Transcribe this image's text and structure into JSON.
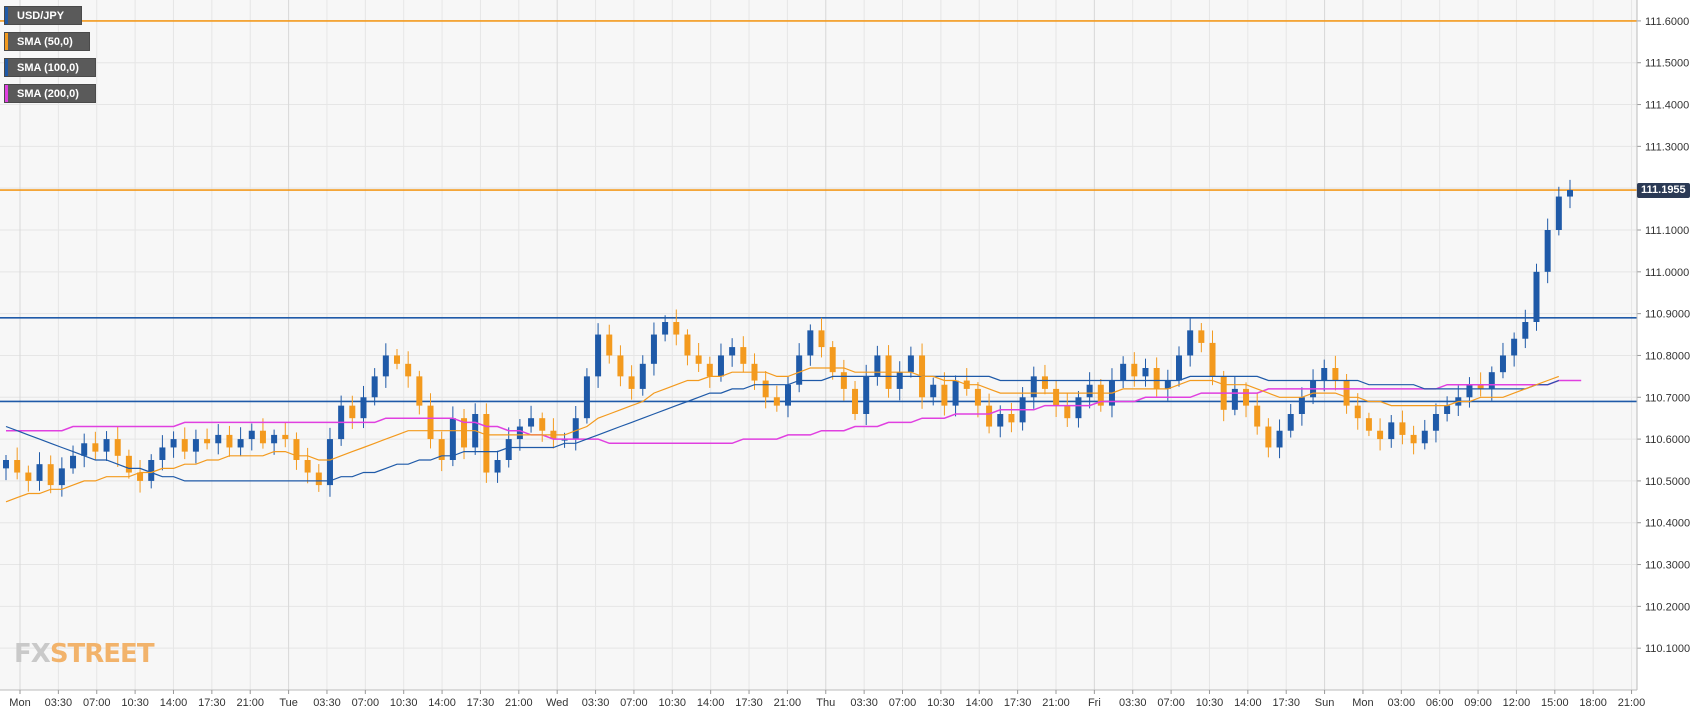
{
  "legend": [
    {
      "label": "USD/JPY",
      "color": "#1f5aa8"
    },
    {
      "label": "SMA (50,0)",
      "color": "#f39a1e"
    },
    {
      "label": "SMA (100,0)",
      "color": "#1f5aa8"
    },
    {
      "label": "SMA (200,0)",
      "color": "#e040e0"
    }
  ],
  "logo": {
    "left": "FX",
    "right": "STREET"
  },
  "price_tag": "111.1955",
  "colors": {
    "bull": "#1f5aa8",
    "bear": "#f39a1e",
    "sma50": "#f39a1e",
    "sma100": "#1f5aa8",
    "sma200": "#e040e0",
    "resistance": "#f39a1e",
    "support": "#1f5aa8",
    "grid": "#e6e6e6"
  },
  "chart_data": {
    "type": "candlestick",
    "symbol": "USD/JPY",
    "ylim": [
      110.0,
      111.65
    ],
    "y_ticks": [
      "111.6000",
      "111.5000",
      "111.4000",
      "111.3000",
      "111.2000",
      "111.1000",
      "111.0000",
      "110.9000",
      "110.8000",
      "110.7000",
      "110.6000",
      "110.5000",
      "110.4000",
      "110.3000",
      "110.2000",
      "110.1000"
    ],
    "x_ticks": [
      "Mon",
      "03:30",
      "07:00",
      "10:30",
      "14:00",
      "17:30",
      "21:00",
      "Tue",
      "03:30",
      "07:00",
      "10:30",
      "14:00",
      "17:30",
      "21:00",
      "Wed",
      "03:30",
      "07:00",
      "10:30",
      "14:00",
      "17:30",
      "21:00",
      "Thu",
      "03:30",
      "07:00",
      "10:30",
      "14:00",
      "17:30",
      "21:00",
      "Fri",
      "03:30",
      "07:00",
      "10:30",
      "14:00",
      "17:30",
      "Sun",
      "Mon",
      "03:00",
      "06:00",
      "09:00",
      "12:00",
      "15:00",
      "18:00",
      "21:00"
    ],
    "horizontal_lines": [
      {
        "value": 111.6,
        "kind": "resistance"
      },
      {
        "value": 111.1955,
        "kind": "resistance"
      },
      {
        "value": 110.89,
        "kind": "support"
      },
      {
        "value": 110.69,
        "kind": "support"
      }
    ],
    "closes": [
      110.55,
      110.52,
      110.5,
      110.54,
      110.49,
      110.53,
      110.56,
      110.59,
      110.57,
      110.6,
      110.56,
      110.52,
      110.5,
      110.55,
      110.58,
      110.6,
      110.57,
      110.6,
      110.59,
      110.61,
      110.58,
      110.6,
      110.62,
      110.59,
      110.61,
      110.6,
      110.55,
      110.52,
      110.49,
      110.6,
      110.68,
      110.65,
      110.7,
      110.75,
      110.8,
      110.78,
      110.75,
      110.68,
      110.6,
      110.55,
      110.65,
      110.58,
      110.66,
      110.52,
      110.55,
      110.6,
      110.63,
      110.65,
      110.62,
      110.6,
      110.6,
      110.65,
      110.75,
      110.85,
      110.8,
      110.75,
      110.72,
      110.78,
      110.85,
      110.88,
      110.85,
      110.8,
      110.78,
      110.75,
      110.8,
      110.82,
      110.78,
      110.74,
      110.7,
      110.68,
      110.73,
      110.8,
      110.86,
      110.82,
      110.76,
      110.72,
      110.66,
      110.75,
      110.8,
      110.72,
      110.76,
      110.8,
      110.7,
      110.73,
      110.68,
      110.74,
      110.72,
      110.68,
      110.63,
      110.66,
      110.64,
      110.7,
      110.75,
      110.72,
      110.68,
      110.65,
      110.7,
      110.73,
      110.68,
      110.74,
      110.78,
      110.75,
      110.77,
      110.72,
      110.74,
      110.8,
      110.86,
      110.83,
      110.75,
      110.67,
      110.72,
      110.68,
      110.63,
      110.58,
      110.62,
      110.66,
      110.7,
      110.74,
      110.77,
      110.74,
      110.68,
      110.65,
      110.62,
      110.6,
      110.64,
      110.61,
      110.59,
      110.62,
      110.66,
      110.68,
      110.7,
      110.73,
      110.72,
      110.76,
      110.8,
      110.84,
      110.88,
      111.0,
      111.1,
      111.18,
      111.1955
    ],
    "sma50": [
      110.45,
      110.46,
      110.47,
      110.47,
      110.48,
      110.48,
      110.49,
      110.5,
      110.5,
      110.51,
      110.51,
      110.51,
      110.52,
      110.52,
      110.53,
      110.53,
      110.54,
      110.54,
      110.55,
      110.55,
      110.56,
      110.56,
      110.56,
      110.56,
      110.57,
      110.57,
      110.56,
      110.56,
      110.55,
      110.55,
      110.56,
      110.57,
      110.58,
      110.59,
      110.6,
      110.61,
      110.62,
      110.62,
      110.62,
      110.62,
      110.62,
      110.62,
      110.62,
      110.61,
      110.61,
      110.61,
      110.61,
      110.61,
      110.61,
      110.61,
      110.61,
      110.62,
      110.63,
      110.65,
      110.66,
      110.67,
      110.68,
      110.69,
      110.71,
      110.72,
      110.73,
      110.74,
      110.74,
      110.75,
      110.75,
      110.76,
      110.76,
      110.76,
      110.76,
      110.75,
      110.75,
      110.76,
      110.77,
      110.77,
      110.77,
      110.77,
      110.76,
      110.76,
      110.76,
      110.76,
      110.76,
      110.76,
      110.75,
      110.75,
      110.74,
      110.74,
      110.73,
      110.73,
      110.72,
      110.71,
      110.71,
      110.71,
      110.71,
      110.71,
      110.71,
      110.71,
      110.71,
      110.71,
      110.71,
      110.71,
      110.72,
      110.72,
      110.72,
      110.72,
      110.72,
      110.73,
      110.74,
      110.74,
      110.74,
      110.73,
      110.73,
      110.73,
      110.72,
      110.71,
      110.7,
      110.7,
      110.7,
      110.71,
      110.71,
      110.71,
      110.7,
      110.7,
      110.69,
      110.69,
      110.68,
      110.68,
      110.68,
      110.68,
      110.68,
      110.68,
      110.69,
      110.69,
      110.7,
      110.7,
      110.7,
      110.71,
      110.72,
      110.73,
      110.74,
      110.75
    ],
    "sma100": [
      110.63,
      110.62,
      110.61,
      110.6,
      110.59,
      110.58,
      110.57,
      110.56,
      110.55,
      110.55,
      110.54,
      110.53,
      110.53,
      110.52,
      110.51,
      110.51,
      110.5,
      110.5,
      110.5,
      110.5,
      110.5,
      110.5,
      110.5,
      110.5,
      110.5,
      110.5,
      110.5,
      110.5,
      110.5,
      110.5,
      110.51,
      110.51,
      110.52,
      110.52,
      110.53,
      110.54,
      110.54,
      110.55,
      110.55,
      110.56,
      110.56,
      110.57,
      110.57,
      110.57,
      110.57,
      110.58,
      110.58,
      110.58,
      110.58,
      110.58,
      110.59,
      110.59,
      110.6,
      110.61,
      110.62,
      110.63,
      110.64,
      110.65,
      110.66,
      110.67,
      110.68,
      110.69,
      110.7,
      110.71,
      110.71,
      110.72,
      110.72,
      110.73,
      110.73,
      110.73,
      110.73,
      110.74,
      110.74,
      110.74,
      110.75,
      110.75,
      110.75,
      110.75,
      110.75,
      110.75,
      110.75,
      110.75,
      110.75,
      110.75,
      110.75,
      110.75,
      110.75,
      110.75,
      110.75,
      110.74,
      110.74,
      110.74,
      110.74,
      110.74,
      110.74,
      110.74,
      110.74,
      110.74,
      110.74,
      110.74,
      110.74,
      110.74,
      110.74,
      110.74,
      110.74,
      110.74,
      110.75,
      110.75,
      110.75,
      110.75,
      110.75,
      110.75,
      110.75,
      110.74,
      110.74,
      110.74,
      110.74,
      110.74,
      110.74,
      110.74,
      110.74,
      110.74,
      110.73,
      110.73,
      110.73,
      110.73,
      110.73,
      110.72,
      110.72,
      110.72,
      110.72,
      110.72,
      110.72,
      110.72,
      110.72,
      110.72,
      110.72,
      110.73,
      110.73,
      110.74
    ],
    "sma200": [
      110.62,
      110.62,
      110.62,
      110.62,
      110.62,
      110.62,
      110.63,
      110.63,
      110.63,
      110.63,
      110.63,
      110.63,
      110.63,
      110.63,
      110.63,
      110.63,
      110.64,
      110.64,
      110.64,
      110.64,
      110.64,
      110.64,
      110.64,
      110.64,
      110.64,
      110.64,
      110.64,
      110.64,
      110.64,
      110.64,
      110.64,
      110.64,
      110.64,
      110.64,
      110.65,
      110.65,
      110.65,
      110.65,
      110.65,
      110.65,
      110.65,
      110.64,
      110.64,
      110.63,
      110.63,
      110.62,
      110.62,
      110.61,
      110.61,
      110.6,
      110.6,
      110.6,
      110.6,
      110.6,
      110.59,
      110.59,
      110.59,
      110.59,
      110.59,
      110.59,
      110.59,
      110.59,
      110.59,
      110.59,
      110.59,
      110.59,
      110.6,
      110.6,
      110.6,
      110.6,
      110.61,
      110.61,
      110.61,
      110.62,
      110.62,
      110.62,
      110.63,
      110.63,
      110.63,
      110.64,
      110.64,
      110.64,
      110.65,
      110.65,
      110.65,
      110.66,
      110.66,
      110.66,
      110.66,
      110.67,
      110.67,
      110.67,
      110.67,
      110.68,
      110.68,
      110.68,
      110.68,
      110.68,
      110.69,
      110.69,
      110.69,
      110.69,
      110.7,
      110.7,
      110.7,
      110.7,
      110.7,
      110.71,
      110.71,
      110.71,
      110.71,
      110.71,
      110.71,
      110.72,
      110.72,
      110.72,
      110.72,
      110.72,
      110.72,
      110.72,
      110.72,
      110.72,
      110.72,
      110.72,
      110.72,
      110.72,
      110.72,
      110.72,
      110.72,
      110.73,
      110.73,
      110.73,
      110.73,
      110.73,
      110.73,
      110.73,
      110.73,
      110.73,
      110.73,
      110.74,
      110.74,
      110.74
    ]
  }
}
